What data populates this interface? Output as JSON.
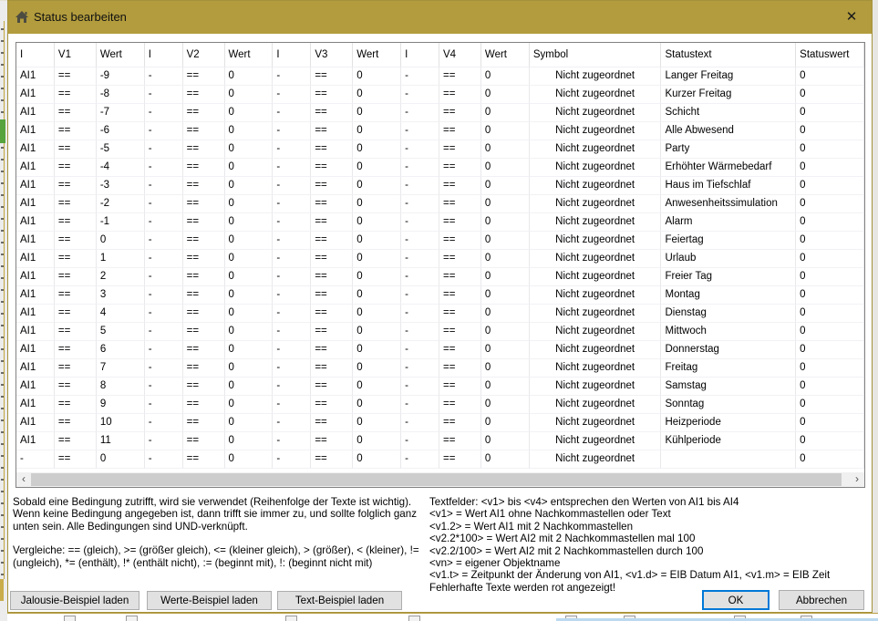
{
  "window": {
    "title": "Status bearbeiten",
    "close_icon": "✕"
  },
  "colors": {
    "titlebar_gold": "#b29c3d",
    "ok_focus_border": "#0078d7",
    "scrollbar_thumb": "#cdcdcd",
    "background_green_fragment": "#57a33e"
  },
  "icons": {
    "titlebar_home": "home-icon",
    "scroll_left": "‹",
    "scroll_right": "›"
  },
  "table": {
    "headers": [
      "I",
      "V1",
      "Wert",
      "I",
      "V2",
      "Wert",
      "I",
      "V3",
      "Wert",
      "I",
      "V4",
      "Wert",
      "Symbol",
      "Statustext",
      "Statuswert"
    ],
    "symbol_column_index": 12,
    "rows": [
      [
        "AI1",
        "==",
        "-9",
        "-",
        "==",
        "0",
        "-",
        "==",
        "0",
        "-",
        "==",
        "0",
        "Nicht zugeordnet",
        "Langer Freitag",
        "0"
      ],
      [
        "AI1",
        "==",
        "-8",
        "-",
        "==",
        "0",
        "-",
        "==",
        "0",
        "-",
        "==",
        "0",
        "Nicht zugeordnet",
        "Kurzer Freitag",
        "0"
      ],
      [
        "AI1",
        "==",
        "-7",
        "-",
        "==",
        "0",
        "-",
        "==",
        "0",
        "-",
        "==",
        "0",
        "Nicht zugeordnet",
        "Schicht",
        "0"
      ],
      [
        "AI1",
        "==",
        "-6",
        "-",
        "==",
        "0",
        "-",
        "==",
        "0",
        "-",
        "==",
        "0",
        "Nicht zugeordnet",
        "Alle Abwesend",
        "0"
      ],
      [
        "AI1",
        "==",
        "-5",
        "-",
        "==",
        "0",
        "-",
        "==",
        "0",
        "-",
        "==",
        "0",
        "Nicht zugeordnet",
        "Party",
        "0"
      ],
      [
        "AI1",
        "==",
        "-4",
        "-",
        "==",
        "0",
        "-",
        "==",
        "0",
        "-",
        "==",
        "0",
        "Nicht zugeordnet",
        "Erhöhter Wärmebedarf",
        "0"
      ],
      [
        "AI1",
        "==",
        "-3",
        "-",
        "==",
        "0",
        "-",
        "==",
        "0",
        "-",
        "==",
        "0",
        "Nicht zugeordnet",
        "Haus im Tiefschlaf",
        "0"
      ],
      [
        "AI1",
        "==",
        "-2",
        "-",
        "==",
        "0",
        "-",
        "==",
        "0",
        "-",
        "==",
        "0",
        "Nicht zugeordnet",
        "Anwesenheitssimulation",
        "0"
      ],
      [
        "AI1",
        "==",
        "-1",
        "-",
        "==",
        "0",
        "-",
        "==",
        "0",
        "-",
        "==",
        "0",
        "Nicht zugeordnet",
        "Alarm",
        "0"
      ],
      [
        "AI1",
        "==",
        "0",
        "-",
        "==",
        "0",
        "-",
        "==",
        "0",
        "-",
        "==",
        "0",
        "Nicht zugeordnet",
        "Feiertag",
        "0"
      ],
      [
        "AI1",
        "==",
        "1",
        "-",
        "==",
        "0",
        "-",
        "==",
        "0",
        "-",
        "==",
        "0",
        "Nicht zugeordnet",
        "Urlaub",
        "0"
      ],
      [
        "AI1",
        "==",
        "2",
        "-",
        "==",
        "0",
        "-",
        "==",
        "0",
        "-",
        "==",
        "0",
        "Nicht zugeordnet",
        "Freier Tag",
        "0"
      ],
      [
        "AI1",
        "==",
        "3",
        "-",
        "==",
        "0",
        "-",
        "==",
        "0",
        "-",
        "==",
        "0",
        "Nicht zugeordnet",
        "Montag",
        "0"
      ],
      [
        "AI1",
        "==",
        "4",
        "-",
        "==",
        "0",
        "-",
        "==",
        "0",
        "-",
        "==",
        "0",
        "Nicht zugeordnet",
        "Dienstag",
        "0"
      ],
      [
        "AI1",
        "==",
        "5",
        "-",
        "==",
        "0",
        "-",
        "==",
        "0",
        "-",
        "==",
        "0",
        "Nicht zugeordnet",
        "Mittwoch",
        "0"
      ],
      [
        "AI1",
        "==",
        "6",
        "-",
        "==",
        "0",
        "-",
        "==",
        "0",
        "-",
        "==",
        "0",
        "Nicht zugeordnet",
        "Donnerstag",
        "0"
      ],
      [
        "AI1",
        "==",
        "7",
        "-",
        "==",
        "0",
        "-",
        "==",
        "0",
        "-",
        "==",
        "0",
        "Nicht zugeordnet",
        "Freitag",
        "0"
      ],
      [
        "AI1",
        "==",
        "8",
        "-",
        "==",
        "0",
        "-",
        "==",
        "0",
        "-",
        "==",
        "0",
        "Nicht zugeordnet",
        "Samstag",
        "0"
      ],
      [
        "AI1",
        "==",
        "9",
        "-",
        "==",
        "0",
        "-",
        "==",
        "0",
        "-",
        "==",
        "0",
        "Nicht zugeordnet",
        "Sonntag",
        "0"
      ],
      [
        "AI1",
        "==",
        "10",
        "-",
        "==",
        "0",
        "-",
        "==",
        "0",
        "-",
        "==",
        "0",
        "Nicht zugeordnet",
        "Heizperiode",
        "0"
      ],
      [
        "AI1",
        "==",
        "11",
        "-",
        "==",
        "0",
        "-",
        "==",
        "0",
        "-",
        "==",
        "0",
        "Nicht zugeordnet",
        "Kühlperiode",
        "0"
      ],
      [
        "-",
        "==",
        "0",
        "-",
        "==",
        "0",
        "-",
        "==",
        "0",
        "-",
        "==",
        "0",
        "Nicht zugeordnet",
        "",
        "0"
      ]
    ]
  },
  "info_left": {
    "paragraph1": "Sobald eine Bedingung zutrifft, wird sie verwendet (Reihenfolge der Texte ist wichtig). Wenn keine Bedingung angegeben ist, dann trifft sie immer zu, und sollte folglich ganz unten sein. Alle Bedingungen sind UND-verknüpft.",
    "paragraph2": "Vergleiche: == (gleich), >= (größer gleich), <= (kleiner gleich), > (größer), < (kleiner), != (ungleich), *= (enthält), !* (enthält nicht), := (beginnt mit), !: (beginnt nicht mit)"
  },
  "info_right": {
    "lines": [
      "Textfelder: <v1> bis <v4> entsprechen den Werten von AI1 bis AI4",
      "<v1> = Wert AI1 ohne Nachkommastellen oder Text",
      "<v1.2> = Wert AI1 mit 2 Nachkommastellen",
      "<v2.2*100> = Wert AI2 mit 2 Nachkommastellen mal 100",
      "<v2.2/100> = Wert AI2 mit 2 Nachkommastellen durch 100",
      "<vn> = eigener Objektname",
      "<v1.t> = Zeitpunkt der Änderung von AI1, <v1.d> = EIB Datum AI1, <v1.m> = EIB Zeit",
      "Fehlerhafte Texte werden rot angezeigt!"
    ]
  },
  "buttons": {
    "jalousie": "Jalousie-Beispiel laden",
    "werte": "Werte-Beispiel laden",
    "text": "Text-Beispiel laden",
    "ok": "OK",
    "cancel": "Abbrechen"
  }
}
